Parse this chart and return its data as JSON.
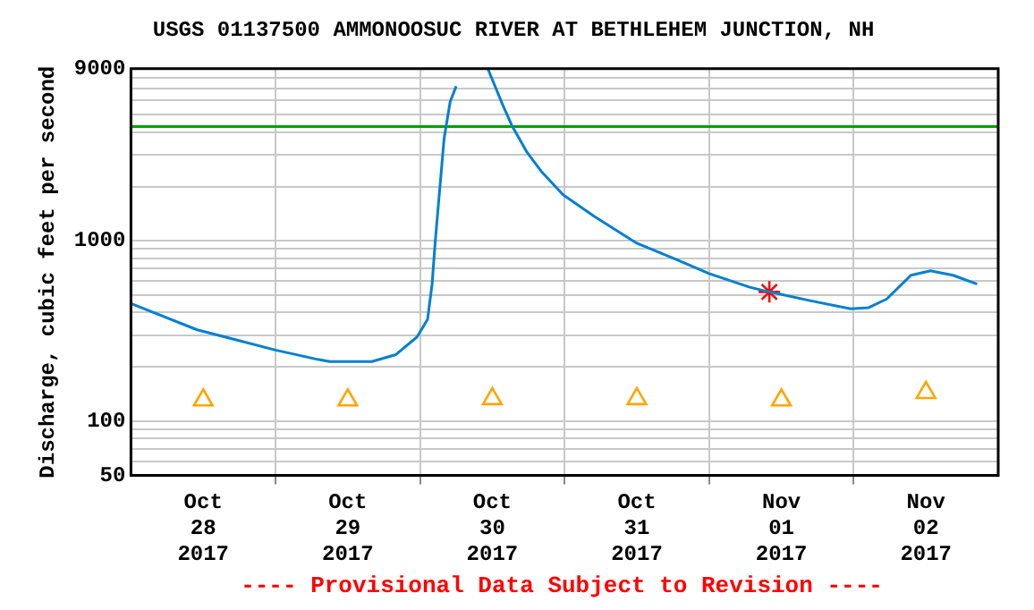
{
  "chart_data": {
    "type": "line",
    "title": "USGS 01137500 AMMONOOSUC RIVER AT BETHLEHEM JUNCTION, NH",
    "ylabel": "Discharge, cubic feet per second",
    "annotations": [
      "---- Provisional Data Subject to Revision ----"
    ],
    "log": "y",
    "grid": true,
    "legend": false,
    "xlim": [
      "2017-10-28T00:00",
      "2017-11-03T00:00"
    ],
    "xticks": [
      {
        "value": "2017-10-28T12:00",
        "label": "Oct 28 2017"
      },
      {
        "value": "2017-10-29T00:00",
        "label": null
      },
      {
        "value": "2017-10-29T12:00",
        "label": "Oct 29 2017"
      },
      {
        "value": "2017-10-30T00:00",
        "label": null
      },
      {
        "value": "2017-10-30T12:00",
        "label": "Oct 30 2017"
      },
      {
        "value": "2017-10-31T00:00",
        "label": null
      },
      {
        "value": "2017-10-31T12:00",
        "label": "Oct 31 2017"
      },
      {
        "value": "2017-11-01T00:00",
        "label": null
      },
      {
        "value": "2017-11-01T12:00",
        "label": "Nov 01 2017"
      },
      {
        "value": "2017-11-02T00:00",
        "label": null
      },
      {
        "value": "2017-11-02T12:00",
        "label": "Nov 02 2017"
      }
    ],
    "ylim": [
      50,
      9000
    ],
    "yticks": [
      50,
      {
        "value": 60,
        "label": null
      },
      {
        "value": 70,
        "label": null
      },
      {
        "value": 80,
        "label": null
      },
      {
        "value": 90,
        "label": null
      },
      100,
      {
        "value": 200,
        "label": null
      },
      {
        "value": 300,
        "label": null
      },
      {
        "value": 400,
        "label": null
      },
      {
        "value": 500,
        "label": null
      },
      {
        "value": 600,
        "label": null
      },
      {
        "value": 700,
        "label": null
      },
      {
        "value": 800,
        "label": null
      },
      {
        "value": 900,
        "label": null
      },
      1000,
      {
        "value": 2000,
        "label": null
      },
      {
        "value": 3000,
        "label": null
      },
      {
        "value": 4000,
        "label": null
      },
      {
        "value": 5000,
        "label": null
      },
      {
        "value": 6000,
        "label": null
      },
      {
        "value": 7000,
        "label": null
      },
      {
        "value": 8000,
        "label": null
      },
      9000
    ],
    "ref_lines": [
      {
        "axis": "y",
        "value": 4300,
        "color": "#00a000"
      }
    ],
    "series": [
      {
        "color": "#0080d0",
        "marker": "none",
        "x": [
          "2017-10-28T00:00",
          "2017-10-28T11:00",
          "2017-10-29T00:00",
          "2017-10-29T07:00",
          "2017-10-29T09:00",
          "2017-10-29T16:00",
          "2017-10-29T20:00",
          "2017-10-29T23:30",
          "2017-10-30T01:15",
          "2017-10-30T02:00",
          "2017-10-30T02:30",
          "2017-10-30T03:15",
          "2017-10-30T04:00",
          "2017-10-30T05:00",
          "2017-10-30T06:00",
          "2017-10-30T07:00",
          "2017-10-30T11:15",
          "2017-10-30T13:45",
          "2017-10-30T15:15",
          "2017-10-30T16:15",
          "2017-10-30T17:45",
          "2017-10-30T20:15",
          "2017-10-30T23:45",
          "2017-10-31T05:00",
          "2017-10-31T12:00",
          "2017-10-31T19:00",
          "2017-11-01T00:00",
          "2017-11-01T06:45",
          "2017-11-01T10:00",
          "2017-11-01T16:45",
          "2017-11-01T23:30",
          "2017-11-02T02:30",
          "2017-11-02T05:30",
          "2017-11-02T09:30",
          "2017-11-02T12:45",
          "2017-11-02T16:30",
          "2017-11-02T20:30"
        ],
        "values": [
          449,
          321,
          248,
          220,
          214,
          214,
          234,
          293,
          367,
          575,
          970,
          1900,
          3700,
          5900,
          7200,
          null,
          9000,
          5650,
          4350,
          3800,
          3100,
          2400,
          1800,
          1360,
          970,
          776,
          658,
          553,
          521,
          466,
          420,
          426,
          476,
          644,
          682,
          644,
          575
        ]
      },
      {
        "type": "scatter",
        "color": "#ffa500",
        "marker": "triangle",
        "x": [
          "2017-10-28T12:00",
          "2017-10-29T12:00",
          "2017-10-30T12:00",
          "2017-10-31T12:00",
          "2017-11-01T12:00",
          "2017-11-02T12:00"
        ],
        "values": [
          131,
          131,
          133,
          133,
          131,
          144
        ]
      },
      {
        "type": "scatter",
        "color": "#ff0000",
        "marker": "cross",
        "x": [
          "2017-11-01T10:00"
        ],
        "values": [
          521
        ]
      }
    ]
  }
}
